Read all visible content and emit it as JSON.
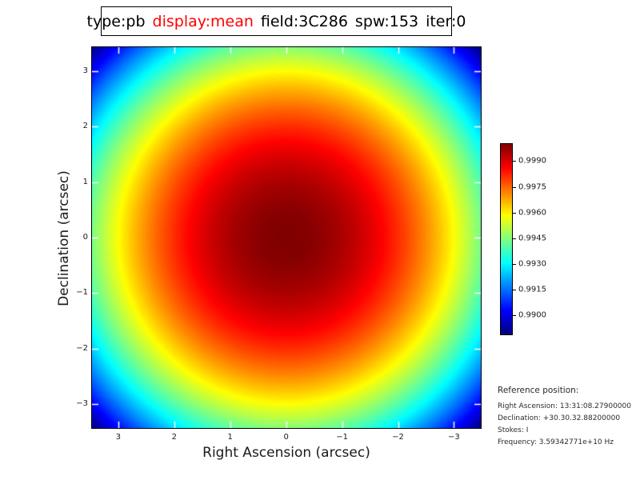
{
  "title": {
    "segments": [
      {
        "text": "type:pb",
        "color": "#000000"
      },
      {
        "text": "display:mean",
        "color": "#ff0000"
      },
      {
        "text": "field:3C286",
        "color": "#000000"
      },
      {
        "text": "spw:153",
        "color": "#000000"
      },
      {
        "text": "iter:0",
        "color": "#000000"
      }
    ]
  },
  "axes": {
    "xlabel": "Right Ascension (arcsec)",
    "ylabel": "Declination (arcsec)",
    "x_tick_labels": [
      "3",
      "2",
      "1",
      "0",
      "−1",
      "−2",
      "−3"
    ],
    "y_tick_labels": [
      "3",
      "2",
      "1",
      "0",
      "−1",
      "−2",
      "−3"
    ]
  },
  "colorbar": {
    "tick_labels": [
      "0.9990",
      "0.9975",
      "0.9960",
      "0.9945",
      "0.9930",
      "0.9915",
      "0.9900"
    ],
    "tick_values": [
      0.999,
      0.9975,
      0.996,
      0.9945,
      0.993,
      0.9915,
      0.99
    ]
  },
  "reference": {
    "title": "Reference position:",
    "lines": [
      "Right Ascension: 13:31:08.27900000",
      "Declination: +30.30.32.88200000",
      "Stokes: I",
      "Frequency: 3.59342771e+10 Hz"
    ]
  },
  "chart_data": {
    "type": "heatmap",
    "title": "type:pb display:mean field:3C286 spw:153 iter:0",
    "xlabel": "Right Ascension (arcsec)",
    "ylabel": "Declination (arcsec)",
    "x_ticks": [
      3,
      2,
      1,
      0,
      -1,
      -2,
      -3
    ],
    "y_ticks": [
      3,
      2,
      1,
      0,
      -1,
      -2,
      -3
    ],
    "xlim": [
      3.47,
      -3.48
    ],
    "ylim": [
      -3.43,
      3.43
    ],
    "colormap": "jet",
    "vmin": 0.9889,
    "vmax": 1.0,
    "model": "radially symmetric primary beam: value = vmax - (vmax - vmin) * (x^2 + y^2) / (3.48^2 + 3.43^2); peak 1.0 at (0,0), minimum ~0.9889 at corners",
    "colorbar_ticks": [
      0.999,
      0.9975,
      0.996,
      0.9945,
      0.993,
      0.9915,
      0.99
    ],
    "grid": false,
    "legend": "colorbar right"
  }
}
